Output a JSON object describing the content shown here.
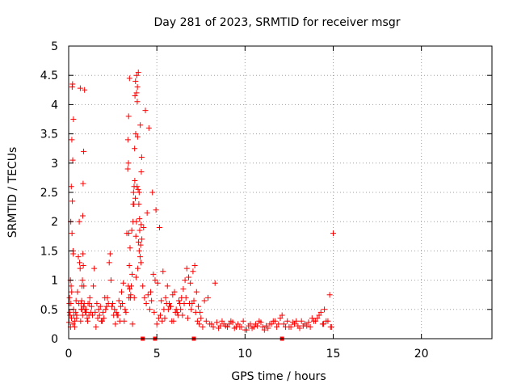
{
  "chart_data": {
    "type": "scatter",
    "title": "Day 281 of 2023, SRMTID for receiver msgr",
    "xlabel": "GPS time / hours",
    "ylabel": "SRMTID / TECUs",
    "xlim": [
      0,
      24
    ],
    "ylim": [
      0,
      5
    ],
    "xticks": [
      0,
      5,
      10,
      15,
      20
    ],
    "xtick_labels": [
      "0",
      "5",
      "10",
      "15",
      "20"
    ],
    "yticks": [
      0,
      0.5,
      1,
      1.5,
      2,
      2.5,
      3,
      3.5,
      4,
      4.5,
      5
    ],
    "ytick_labels": [
      "0",
      "0.5",
      "1",
      "1.5",
      "2",
      "2.5",
      "3",
      "3.5",
      "4",
      "4.5",
      "5"
    ],
    "grid": true,
    "marker": "+",
    "color": "#ff0000",
    "series": [
      {
        "name": "SRMTID",
        "x": [
          0.05,
          0.1,
          0.12,
          0.15,
          0.18,
          0.2,
          0.22,
          0.25,
          0.28,
          0.3,
          0.35,
          0.4,
          0.45,
          0.5,
          0.55,
          0.6,
          0.65,
          0.7,
          0.72,
          0.75,
          0.78,
          0.8,
          0.82,
          0.85,
          0.9,
          0.95,
          1.0,
          1.05,
          1.1,
          1.15,
          1.2,
          1.3,
          1.4,
          1.5,
          1.6,
          1.7,
          1.8,
          1.9,
          2.0,
          2.1,
          2.2,
          2.3,
          2.35,
          2.4,
          2.5,
          2.6,
          2.7,
          2.8,
          2.9,
          3.0,
          3.1,
          3.2,
          3.3,
          3.35,
          3.4,
          3.45,
          3.5,
          3.55,
          3.6,
          3.65,
          3.7,
          3.75,
          3.8,
          3.85,
          3.9,
          3.95,
          4.0,
          4.05,
          4.1,
          4.15,
          4.2,
          4.3,
          4.4,
          4.5,
          4.6,
          4.7,
          4.8,
          4.9,
          5.0,
          5.1,
          5.2,
          5.3,
          5.4,
          5.5,
          5.6,
          5.7,
          5.8,
          5.9,
          6.0,
          6.1,
          6.2,
          6.3,
          6.4,
          6.5,
          6.6,
          6.7,
          6.8,
          6.9,
          7.0,
          7.1,
          7.2,
          7.3,
          7.4,
          7.5,
          7.6,
          7.8,
          8.0,
          8.2,
          8.4,
          8.6,
          8.8,
          9.0,
          9.2,
          9.4,
          9.6,
          9.8,
          10.0,
          10.2,
          10.4,
          10.6,
          10.8,
          11.0,
          11.2,
          11.4,
          11.6,
          11.8,
          12.0,
          12.2,
          12.4,
          12.6,
          12.8,
          13.0,
          13.2,
          13.4,
          13.6,
          13.8,
          14.0,
          14.2,
          14.4,
          14.6,
          14.8,
          15.0,
          0.08,
          0.16,
          0.26,
          0.42,
          0.62,
          0.68,
          0.88,
          0.92,
          1.25,
          1.45,
          1.75,
          2.05,
          2.45,
          2.75,
          3.05,
          3.25,
          3.38,
          3.48,
          3.58,
          3.68,
          3.78,
          3.88,
          3.98,
          4.08,
          4.25,
          4.45,
          4.65,
          4.85,
          5.05,
          5.25,
          5.45,
          5.65,
          5.85,
          6.05,
          6.25,
          6.45,
          6.65,
          6.85,
          6.95,
          7.05,
          7.15,
          7.25,
          7.35,
          7.7,
          8.1,
          8.5,
          8.9,
          9.3,
          9.7,
          10.1,
          10.5,
          10.9,
          11.3,
          11.7,
          11.9,
          12.1,
          12.5,
          12.9,
          13.3,
          13.7,
          14.1,
          14.3,
          14.5,
          14.7,
          14.9,
          0.04,
          0.14,
          0.24,
          0.34,
          0.46,
          0.58,
          0.76,
          0.84,
          0.98,
          1.08,
          1.18,
          1.35,
          1.55,
          1.65,
          1.85,
          1.95,
          2.15,
          2.25,
          2.55,
          2.65,
          2.85,
          2.95,
          3.15,
          3.42,
          3.52,
          3.62,
          3.72,
          3.82,
          3.92,
          4.02,
          4.12,
          4.35,
          4.55,
          4.75,
          4.95,
          5.15,
          5.35,
          5.55,
          5.75,
          5.95,
          6.15,
          6.35,
          6.55,
          6.75,
          7.45,
          7.9,
          8.3,
          8.7,
          9.1,
          9.5,
          9.9,
          10.3,
          10.7,
          11.1,
          11.5,
          12.3,
          12.7,
          13.1,
          13.5,
          13.9,
          14.45,
          14.85,
          0.02,
          0.06,
          0.11,
          0.13,
          0.17,
          0.19,
          0.21,
          0.23,
          0.27,
          0.66,
          0.74,
          0.79,
          0.81,
          0.83,
          0.86,
          3.36,
          3.39,
          3.41,
          3.44,
          3.46,
          3.66,
          3.71,
          3.74,
          3.76,
          3.79,
          3.81,
          3.84,
          3.86,
          3.89,
          3.91,
          3.94,
          3.96,
          4.0,
          4.03,
          4.06,
          4.11,
          4.14
        ],
        "y": [
          0.7,
          1.0,
          2.0,
          2.6,
          3.4,
          4.3,
          4.35,
          1.5,
          0.5,
          0.4,
          0.3,
          0.45,
          0.35,
          0.8,
          1.4,
          2.0,
          1.2,
          0.6,
          0.5,
          0.9,
          1.0,
          2.1,
          2.65,
          3.2,
          4.25,
          0.45,
          0.5,
          0.35,
          0.6,
          0.4,
          0.7,
          0.55,
          0.9,
          0.45,
          0.6,
          0.5,
          0.55,
          0.3,
          0.35,
          0.5,
          0.7,
          1.3,
          1.45,
          1.0,
          0.6,
          0.5,
          0.45,
          0.4,
          0.3,
          0.8,
          0.95,
          0.5,
          1.8,
          2.9,
          3.8,
          4.45,
          0.7,
          0.9,
          1.1,
          2.0,
          2.3,
          2.7,
          3.5,
          4.2,
          4.3,
          4.55,
          1.5,
          1.4,
          1.3,
          1.7,
          0.9,
          0.7,
          0.6,
          0.75,
          0.5,
          0.65,
          1.1,
          1.0,
          0.25,
          0.35,
          0.4,
          0.3,
          0.5,
          0.7,
          0.9,
          0.6,
          0.55,
          0.75,
          0.8,
          0.5,
          0.4,
          0.6,
          0.7,
          0.85,
          1.0,
          1.2,
          1.05,
          0.95,
          0.6,
          0.65,
          0.45,
          0.3,
          0.25,
          0.35,
          0.2,
          0.3,
          0.25,
          0.2,
          0.28,
          0.22,
          0.25,
          0.2,
          0.3,
          0.18,
          0.25,
          0.2,
          0.15,
          0.22,
          0.18,
          0.25,
          0.3,
          0.2,
          0.22,
          0.25,
          0.3,
          0.2,
          0.35,
          0.25,
          0.3,
          0.2,
          0.25,
          0.22,
          0.3,
          0.25,
          0.28,
          0.35,
          0.3,
          0.4,
          0.25,
          0.3,
          0.75,
          1.8,
          0.4,
          0.35,
          1.45,
          0.65,
          1.3,
          0.3,
          0.6,
          0.5,
          0.45,
          1.2,
          0.4,
          0.7,
          0.55,
          0.4,
          0.6,
          0.45,
          0.9,
          1.55,
          1.85,
          2.5,
          2.4,
          2.6,
          2.3,
          1.6,
          1.9,
          2.15,
          0.8,
          0.45,
          0.95,
          0.65,
          0.35,
          0.5,
          0.3,
          0.45,
          0.65,
          0.4,
          0.7,
          0.6,
          0.5,
          1.15,
          1.25,
          0.8,
          0.55,
          0.65,
          0.25,
          0.18,
          0.22,
          0.28,
          0.2,
          0.15,
          0.2,
          0.28,
          0.18,
          0.3,
          0.25,
          0.4,
          0.2,
          0.3,
          0.22,
          0.2,
          0.35,
          0.45,
          0.5,
          0.3,
          0.2,
          0.6,
          0.9,
          0.25,
          0.2,
          0.4,
          0.6,
          0.5,
          0.55,
          0.45,
          0.3,
          0.6,
          0.4,
          0.2,
          0.35,
          0.3,
          0.45,
          0.55,
          0.6,
          0.4,
          0.25,
          0.65,
          0.55,
          0.3,
          0.7,
          0.75,
          0.25,
          0.7,
          1.05,
          1.2,
          2.05,
          2.85,
          3.9,
          3.6,
          2.5,
          2.2,
          1.9,
          1.15,
          0.6,
          0.55,
          0.3,
          0.45,
          0.5,
          0.6,
          0.35,
          0.45,
          0.7,
          0.95,
          0.3,
          0.25,
          0.2,
          0.3,
          0.25,
          0.22,
          0.15,
          0.25,
          0.2,
          0.28,
          0.18,
          0.22,
          0.3,
          0.25,
          0.2,
          0.28,
          0.45,
          0.2,
          0.6,
          0.8,
          1.8,
          2.35,
          3.05,
          3.75,
          4.28,
          0.65,
          0.4,
          1.45,
          1.25,
          0.9,
          3.4,
          3.0,
          1.8,
          1.25,
          0.85,
          2.3,
          2.6,
          3.25,
          4.15,
          4.4,
          1.75,
          2.0,
          4.5,
          4.05,
          3.45,
          2.55,
          1.65,
          2.5,
          1.85,
          3.65,
          1.95,
          3.1
        ]
      }
    ],
    "bottom_markers_x": [
      4.2,
      4.9,
      7.1,
      12.1
    ]
  }
}
